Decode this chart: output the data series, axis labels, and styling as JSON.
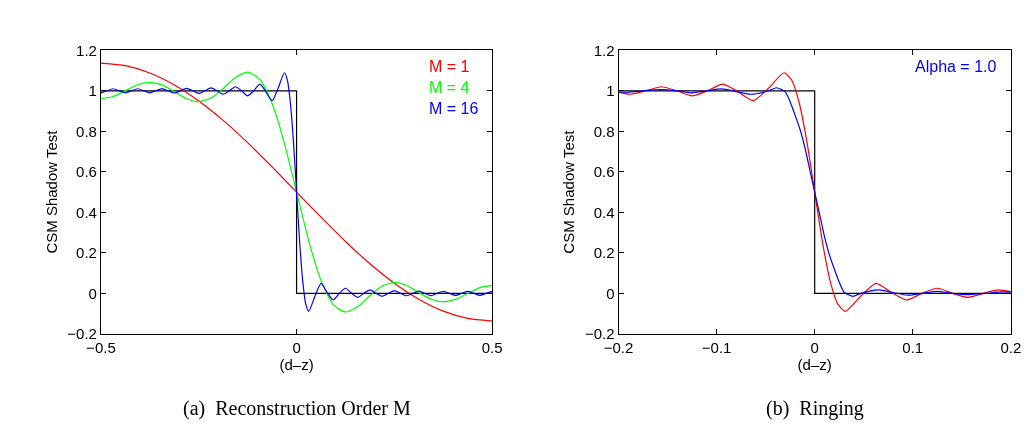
{
  "chart_data": [
    {
      "type": "line",
      "title": "(a)  Reconstruction Order M",
      "xlabel": "(d–z)",
      "ylabel": "CSM Shadow Test",
      "xlim": [
        -0.5,
        0.5
      ],
      "xticks": [
        {
          "value": -0.5,
          "label": "−0.5"
        },
        0,
        0.5
      ],
      "ylim": [
        -0.2,
        1.2
      ],
      "yticks": [
        {
          "value": -0.2,
          "label": "−0.2"
        },
        0,
        0.2,
        0.4,
        0.6,
        0.8,
        1,
        1.2
      ],
      "legend": "top right",
      "line_style": "solid",
      "series": [
        {
          "type": "step",
          "color": "#000000",
          "x": [
            -0.5,
            0,
            0.5
          ],
          "values": [
            1,
            0,
            0
          ]
        },
        {
          "name": "M = 1",
          "color": "#ff0000",
          "x": [
            -0.5,
            -0.4375,
            -0.375,
            -0.3125,
            -0.25,
            -0.1875,
            -0.125,
            -0.0625,
            0,
            0.0625,
            0.125,
            0.1875,
            0.25,
            0.3125,
            0.375,
            0.4375,
            0.5
          ],
          "values": [
            1.137,
            1.124,
            1.088,
            1.029,
            0.95,
            0.854,
            0.744,
            0.624,
            0.5,
            0.376,
            0.256,
            0.146,
            0.05,
            -0.029,
            -0.088,
            -0.124,
            -0.137
          ]
        },
        {
          "name": "M = 4",
          "color": "#00ff00",
          "x": [
            -0.5,
            -0.46875,
            -0.4375,
            -0.40625,
            -0.375,
            -0.34375,
            -0.3125,
            -0.28125,
            -0.25,
            -0.21875,
            -0.1875,
            -0.15625,
            -0.125,
            -0.09375,
            -0.0625,
            -0.03125,
            0,
            0.03125,
            0.0625,
            0.09375,
            0.125,
            0.15625,
            0.1875,
            0.21875,
            0.25,
            0.28125,
            0.3125,
            0.34375,
            0.375,
            0.40625,
            0.4375,
            0.46875,
            0.5
          ],
          "values": [
            0.961,
            0.972,
            1.001,
            1.03,
            1.042,
            1.029,
            0.996,
            0.961,
            0.946,
            0.964,
            1.011,
            1.066,
            1.092,
            1.056,
            0.937,
            0.742,
            0.5,
            0.258,
            0.063,
            -0.056,
            -0.092,
            -0.066,
            -0.011,
            0.036,
            0.054,
            0.039,
            0.004,
            -0.029,
            -0.042,
            -0.03,
            -0.001,
            0.028,
            0.039
          ]
        },
        {
          "name": "M = 16",
          "color": "#0000ff",
          "x": [
            -0.5,
            -0.4844,
            -0.46875,
            -0.4531,
            -0.4375,
            -0.4219,
            -0.40625,
            -0.3906,
            -0.375,
            -0.3594,
            -0.34375,
            -0.3281,
            -0.3125,
            -0.2969,
            -0.28125,
            -0.2656,
            -0.25,
            -0.2344,
            -0.21875,
            -0.2031,
            -0.1875,
            -0.1719,
            -0.15625,
            -0.1406,
            -0.125,
            -0.1094,
            -0.09375,
            -0.0781,
            -0.0625,
            -0.0469,
            -0.03125,
            -0.0234,
            -0.0156,
            -0.0078,
            0,
            0.0078,
            0.0156,
            0.0234,
            0.03125,
            0.0469,
            0.0625,
            0.0781,
            0.09375,
            0.1094,
            0.125,
            0.1406,
            0.15625,
            0.1719,
            0.1875,
            0.2031,
            0.21875,
            0.2344,
            0.25,
            0.2656,
            0.28125,
            0.2969,
            0.3125,
            0.3281,
            0.34375,
            0.3594,
            0.375,
            0.3906,
            0.40625,
            0.4219,
            0.4375,
            0.4531,
            0.46875,
            0.4844,
            0.5
          ],
          "values": [
            0.99,
            1,
            1.01,
            1,
            0.99,
            1,
            1.01,
            1,
            0.99,
            1,
            1.011,
            1,
            0.989,
            1,
            1.012,
            1,
            0.987,
            1,
            1.014,
            1,
            0.983,
            1,
            1.02,
            1,
            0.975,
            1,
            1.033,
            0.995,
            0.951,
            1.014,
            1.089,
            1.052,
            0.936,
            0.744,
            0.5,
            0.256,
            0.064,
            -0.052,
            -0.089,
            -0.014,
            0.049,
            0.005,
            -0.033,
            0,
            0.025,
            0,
            -0.02,
            0,
            0.017,
            0,
            -0.014,
            0,
            0.013,
            0,
            -0.012,
            0,
            0.011,
            0,
            -0.011,
            0,
            0.01,
            0,
            -0.01,
            0,
            0.01,
            0,
            -0.01,
            0,
            0.01
          ]
        }
      ]
    },
    {
      "type": "line",
      "title": "(b)  Ringing",
      "xlabel": "(d–z)",
      "ylabel": "CSM Shadow Test",
      "xlim": [
        -0.2,
        0.2
      ],
      "xticks": [
        {
          "value": -0.2,
          "label": "−0.2"
        },
        {
          "value": -0.1,
          "label": "−0.1"
        },
        0,
        0.1,
        0.2
      ],
      "ylim": [
        -0.2,
        1.2
      ],
      "yticks": [
        {
          "value": -0.2,
          "label": "−0.2"
        },
        0,
        0.2,
        0.4,
        0.6,
        0.8,
        1,
        1.2
      ],
      "legend": "top right",
      "line_style": "solid",
      "series": [
        {
          "type": "step",
          "color": "#000000",
          "x": [
            -0.2,
            0,
            0.2
          ],
          "values": [
            1,
            0,
            0
          ]
        },
        {
          "color": "#ff0000",
          "x": [
            -0.2,
            -0.1875,
            -0.1719,
            -0.15625,
            -0.1406,
            -0.125,
            -0.1094,
            -0.09375,
            -0.0781,
            -0.0625,
            -0.0469,
            -0.03125,
            -0.0234,
            -0.0156,
            -0.0078,
            0,
            0.0078,
            0.0156,
            0.0234,
            0.03125,
            0.0469,
            0.0625,
            0.0781,
            0.09375,
            0.1094,
            0.125,
            0.1406,
            0.15625,
            0.1719,
            0.1875,
            0.2
          ],
          "values": [
            0.992,
            0.983,
            1,
            1.02,
            1,
            0.975,
            1,
            1.033,
            0.995,
            0.951,
            1.014,
            1.089,
            1.052,
            0.936,
            0.744,
            0.5,
            0.256,
            0.064,
            -0.052,
            -0.089,
            -0.014,
            0.049,
            0.005,
            -0.033,
            0,
            0.025,
            0,
            -0.02,
            0,
            0.017,
            0.008
          ]
        },
        {
          "name": "Alpha = 1.0",
          "color": "#0000ff",
          "x": [
            -0.2,
            -0.19,
            -0.175,
            -0.157,
            -0.14,
            -0.125,
            -0.11,
            -0.095,
            -0.08,
            -0.065,
            -0.047,
            -0.039,
            -0.03,
            -0.025,
            -0.02,
            -0.015,
            -0.01,
            -0.005,
            0,
            0.005,
            0.01,
            0.015,
            0.02,
            0.025,
            0.03,
            0.039,
            0.047,
            0.065,
            0.08,
            0.095,
            0.11,
            0.125,
            0.14,
            0.157,
            0.175,
            0.19,
            0.2
          ],
          "values": [
            0.994,
            0.993,
            1,
            1.006,
            1,
            0.99,
            1,
            1.009,
            0.996,
            0.983,
            1,
            1.015,
            0.995,
            0.945,
            0.88,
            0.81,
            0.72,
            0.61,
            0.5,
            0.39,
            0.28,
            0.19,
            0.12,
            0.055,
            0.005,
            -0.015,
            0,
            0.017,
            0.004,
            -0.009,
            0,
            0.01,
            0,
            -0.006,
            0,
            0.007,
            0.006
          ]
        }
      ]
    }
  ]
}
